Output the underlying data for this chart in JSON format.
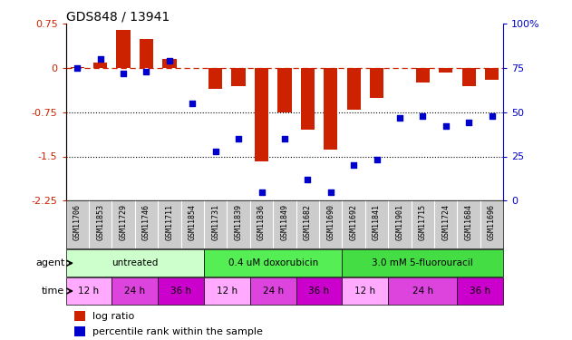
{
  "title": "GDS848 / 13941",
  "samples": [
    "GSM11706",
    "GSM11853",
    "GSM11729",
    "GSM11746",
    "GSM11711",
    "GSM11854",
    "GSM11731",
    "GSM11839",
    "GSM11836",
    "GSM11849",
    "GSM11682",
    "GSM11690",
    "GSM11692",
    "GSM11841",
    "GSM11901",
    "GSM11715",
    "GSM11724",
    "GSM11684",
    "GSM11696"
  ],
  "log_ratio": [
    0.02,
    0.1,
    0.65,
    0.5,
    0.15,
    0.0,
    -0.35,
    -0.3,
    -1.58,
    -0.75,
    -1.05,
    -1.38,
    -0.7,
    -0.5,
    0.0,
    -0.25,
    -0.08,
    -0.3,
    -0.2
  ],
  "percentile_rank": [
    75,
    80,
    72,
    73,
    79,
    55,
    28,
    35,
    5,
    35,
    12,
    5,
    20,
    23,
    47,
    48,
    42,
    44,
    48
  ],
  "ylim_left": [
    -2.25,
    0.75
  ],
  "ylim_right": [
    0,
    100
  ],
  "yticks_left": [
    0.75,
    0.0,
    -0.75,
    -1.5,
    -2.25
  ],
  "yticks_right": [
    100,
    75,
    50,
    25,
    0
  ],
  "bar_color": "#cc2200",
  "dot_color": "#0000cc",
  "right_axis_color": "#0000cc",
  "background_color": "#ffffff",
  "agent_info": [
    {
      "label": "untreated",
      "start": 0,
      "end": 5,
      "color": "#ccffcc"
    },
    {
      "label": "0.4 uM doxorubicin",
      "start": 6,
      "end": 11,
      "color": "#55ee55"
    },
    {
      "label": "3.0 mM 5-fluorouracil",
      "start": 12,
      "end": 18,
      "color": "#44dd44"
    }
  ],
  "time_info": [
    {
      "label": "12 h",
      "start": 0,
      "end": 1,
      "color": "#ffaaff"
    },
    {
      "label": "24 h",
      "start": 2,
      "end": 3,
      "color": "#dd44dd"
    },
    {
      "label": "36 h",
      "start": 4,
      "end": 5,
      "color": "#cc00cc"
    },
    {
      "label": "12 h",
      "start": 6,
      "end": 7,
      "color": "#ffaaff"
    },
    {
      "label": "24 h",
      "start": 8,
      "end": 9,
      "color": "#dd44dd"
    },
    {
      "label": "36 h",
      "start": 10,
      "end": 11,
      "color": "#cc00cc"
    },
    {
      "label": "12 h",
      "start": 12,
      "end": 13,
      "color": "#ffaaff"
    },
    {
      "label": "24 h",
      "start": 14,
      "end": 16,
      "color": "#dd44dd"
    },
    {
      "label": "36 h",
      "start": 17,
      "end": 18,
      "color": "#cc00cc"
    }
  ]
}
